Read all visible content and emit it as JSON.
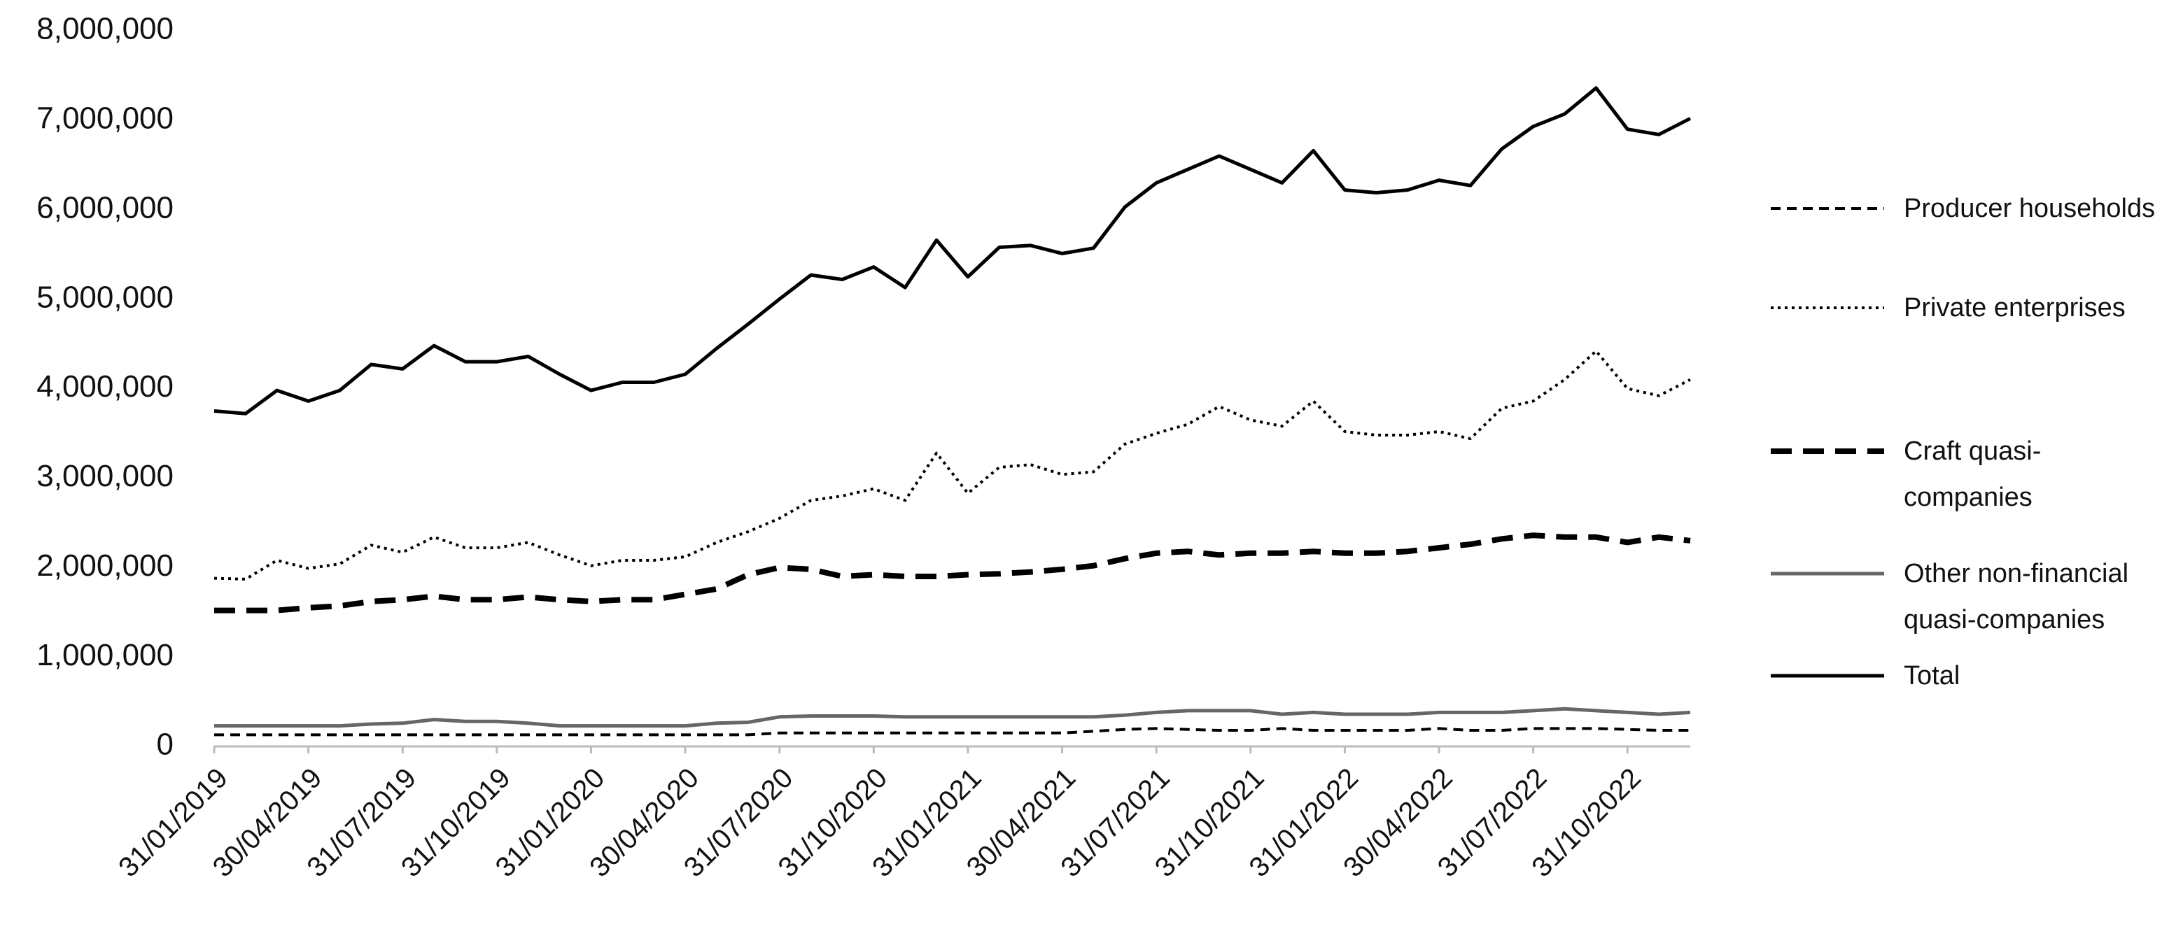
{
  "chart_data": {
    "type": "line",
    "categories": [
      "31/01/2019",
      null,
      null,
      "30/04/2019",
      null,
      null,
      "31/07/2019",
      null,
      null,
      "31/10/2019",
      null,
      null,
      "31/01/2020",
      null,
      null,
      "30/04/2020",
      null,
      null,
      "31/07/2020",
      null,
      null,
      "31/10/2020",
      null,
      null,
      "31/01/2021",
      null,
      null,
      "30/04/2021",
      null,
      null,
      "31/07/2021",
      null,
      null,
      "31/10/2021",
      null,
      null,
      "31/01/2022",
      null,
      null,
      "30/04/2022",
      null,
      null,
      "31/07/2022",
      null,
      null,
      "31/10/2022",
      null,
      null
    ],
    "ylim": [
      0,
      8000000
    ],
    "yticks": [
      0,
      {
        "value": 1000000,
        "label": "1,000,000"
      },
      {
        "value": 2000000,
        "label": "2,000,000"
      },
      {
        "value": 3000000,
        "label": "3,000,000"
      },
      {
        "value": 4000000,
        "label": "4,000,000"
      },
      {
        "value": 5000000,
        "label": "5,000,000"
      },
      {
        "value": 6000000,
        "label": "6,000,000"
      },
      {
        "value": 7000000,
        "label": "7,000,000"
      },
      {
        "value": 8000000,
        "label": "8,000,000"
      }
    ],
    "series": [
      {
        "name": "Producer households",
        "color": "#000000",
        "line_style": "dashed",
        "values": [
          130000,
          130000,
          130000,
          130000,
          130000,
          130000,
          130000,
          130000,
          130000,
          130000,
          130000,
          130000,
          130000,
          130000,
          130000,
          130000,
          130000,
          130000,
          150000,
          150000,
          150000,
          150000,
          150000,
          150000,
          150000,
          150000,
          150000,
          150000,
          170000,
          190000,
          200000,
          190000,
          180000,
          180000,
          200000,
          180000,
          180000,
          180000,
          180000,
          200000,
          180000,
          180000,
          200000,
          200000,
          200000,
          190000,
          180000,
          180000
        ]
      },
      {
        "name": "Private enterprises",
        "color": "#000000",
        "line_style": "dotted",
        "values": [
          1880000,
          1870000,
          2080000,
          1990000,
          2040000,
          2250000,
          2170000,
          2340000,
          2220000,
          2220000,
          2280000,
          2140000,
          2020000,
          2080000,
          2080000,
          2120000,
          2280000,
          2400000,
          2550000,
          2750000,
          2800000,
          2880000,
          2750000,
          3280000,
          2830000,
          3120000,
          3150000,
          3040000,
          3070000,
          3380000,
          3500000,
          3600000,
          3800000,
          3650000,
          3580000,
          3860000,
          3520000,
          3480000,
          3480000,
          3520000,
          3440000,
          3780000,
          3860000,
          4100000,
          4420000,
          4000000,
          3920000,
          4100000
        ]
      },
      {
        "name": "Craft quasi-companies",
        "color": "#000000",
        "line_style": "long-dashed",
        "values": [
          1520000,
          1520000,
          1520000,
          1550000,
          1570000,
          1620000,
          1640000,
          1680000,
          1640000,
          1640000,
          1670000,
          1640000,
          1620000,
          1640000,
          1640000,
          1700000,
          1760000,
          1920000,
          2000000,
          1980000,
          1900000,
          1920000,
          1900000,
          1900000,
          1920000,
          1930000,
          1950000,
          1980000,
          2020000,
          2100000,
          2160000,
          2180000,
          2140000,
          2160000,
          2160000,
          2180000,
          2160000,
          2160000,
          2180000,
          2220000,
          2260000,
          2320000,
          2360000,
          2340000,
          2340000,
          2280000,
          2340000,
          2300000
        ]
      },
      {
        "name": "Other non-financial quasi-companies",
        "color": "#666666",
        "line_style": "solid",
        "values": [
          230000,
          230000,
          230000,
          230000,
          230000,
          250000,
          260000,
          300000,
          280000,
          280000,
          260000,
          230000,
          230000,
          230000,
          230000,
          230000,
          260000,
          270000,
          330000,
          340000,
          340000,
          340000,
          330000,
          330000,
          330000,
          330000,
          330000,
          330000,
          330000,
          350000,
          380000,
          400000,
          400000,
          400000,
          360000,
          380000,
          360000,
          360000,
          360000,
          380000,
          380000,
          380000,
          400000,
          420000,
          400000,
          380000,
          360000,
          380000
        ]
      },
      {
        "name": "Total",
        "color": "#000000",
        "line_style": "solid",
        "values": [
          3750000,
          3720000,
          3980000,
          3860000,
          3980000,
          4270000,
          4220000,
          4480000,
          4300000,
          4300000,
          4360000,
          4160000,
          3980000,
          4070000,
          4070000,
          4160000,
          4450000,
          4720000,
          5000000,
          5270000,
          5220000,
          5360000,
          5130000,
          5660000,
          5250000,
          5580000,
          5600000,
          5510000,
          5570000,
          6030000,
          6300000,
          6450000,
          6600000,
          6450000,
          6300000,
          6660000,
          6220000,
          6190000,
          6220000,
          6330000,
          6270000,
          6680000,
          6930000,
          7070000,
          7360000,
          6900000,
          6840000,
          7020000
        ]
      }
    ],
    "legend": "right"
  }
}
